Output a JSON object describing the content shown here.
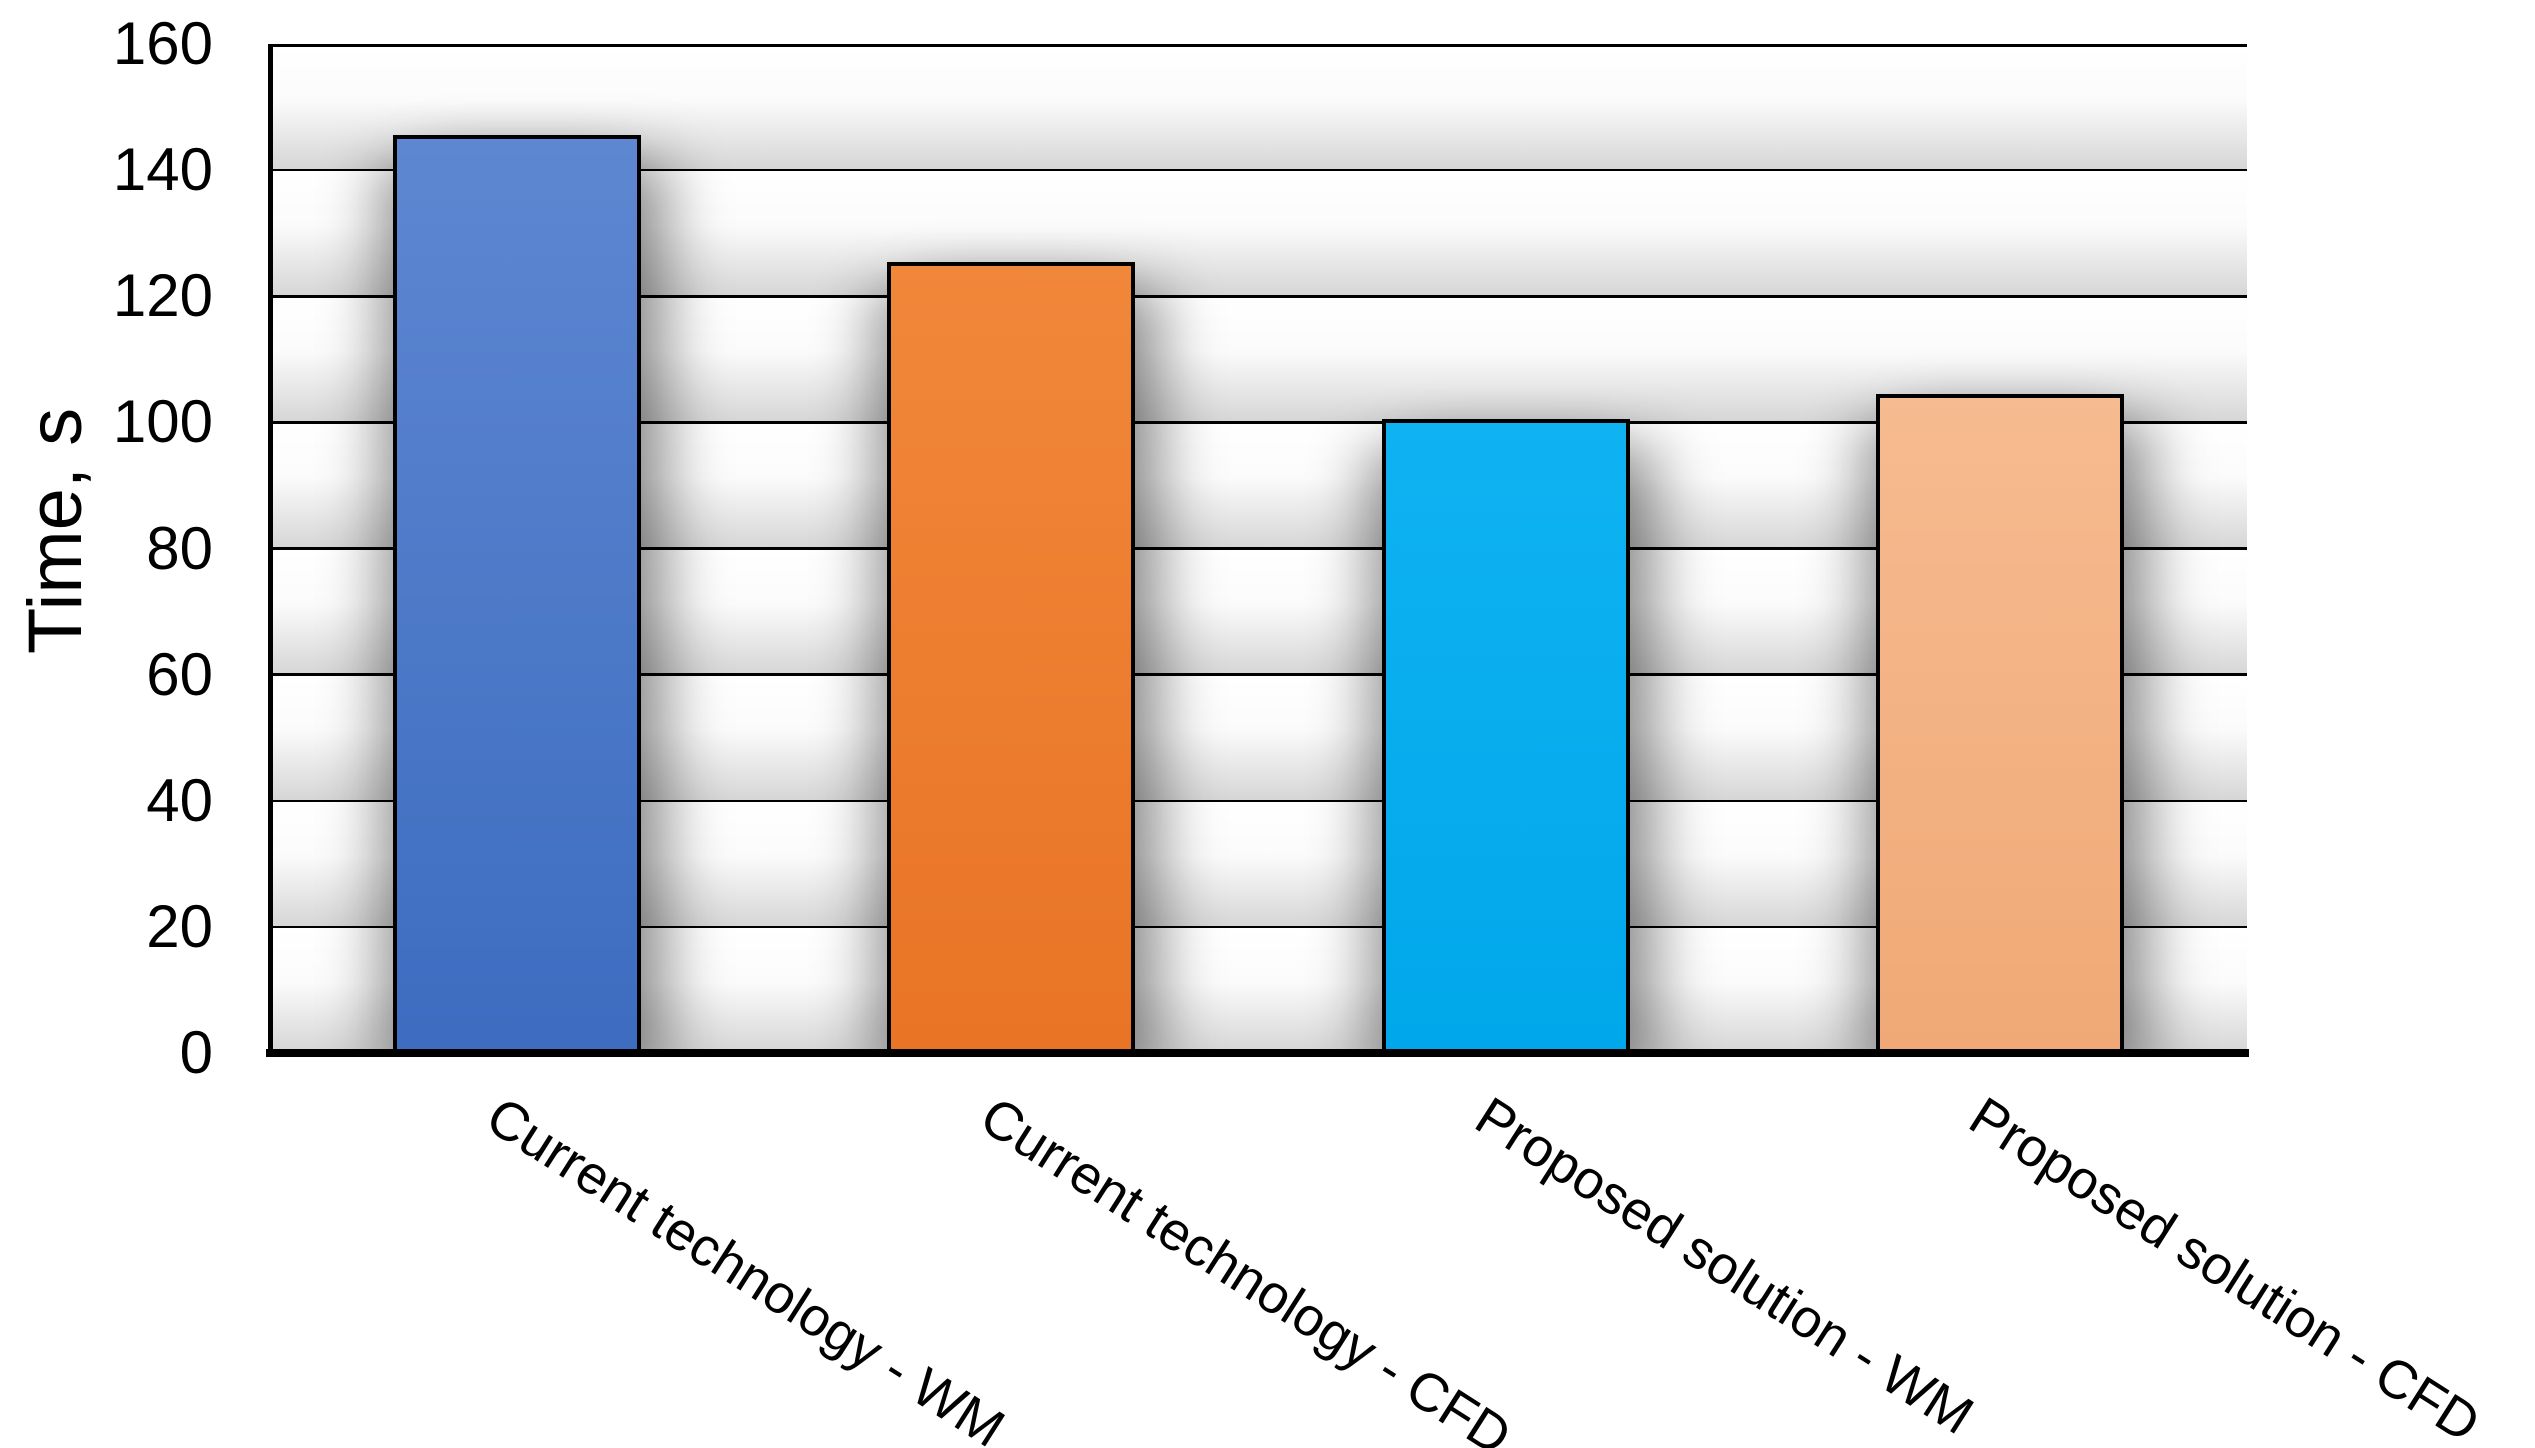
{
  "chart_data": {
    "type": "bar",
    "title": "",
    "categories": [
      "Current technology - WM",
      "Current technology - CFD",
      "Proposed solution - WM",
      "Proposed solution - CFD"
    ],
    "values": [
      145.5,
      125.5,
      100.5,
      104.5
    ],
    "bar_colors": [
      "#4472C4",
      "#ED7D31",
      "#00B0F0",
      "#F4B183"
    ],
    "bar_fill_gradients": [
      [
        "#5E87D1",
        "#3D6CC0"
      ],
      [
        "#F1873A",
        "#E97426"
      ],
      [
        "#0FB3F2",
        "#00A7EA"
      ],
      [
        "#F6BB90",
        "#F0A976"
      ]
    ],
    "bar_outline_color": "#000000",
    "xlabel": "",
    "ylabel": "Time, s",
    "ylim": [
      0,
      160
    ],
    "ytick_step": 20,
    "yticks": [
      0,
      20,
      40,
      60,
      80,
      100,
      120,
      140,
      160
    ],
    "grid": true,
    "gridline_color": "#000000",
    "axis_color": "#000000",
    "background_color": "#FFFFFF",
    "legend": "none",
    "category_label_rotation_deg": -32.5
  }
}
